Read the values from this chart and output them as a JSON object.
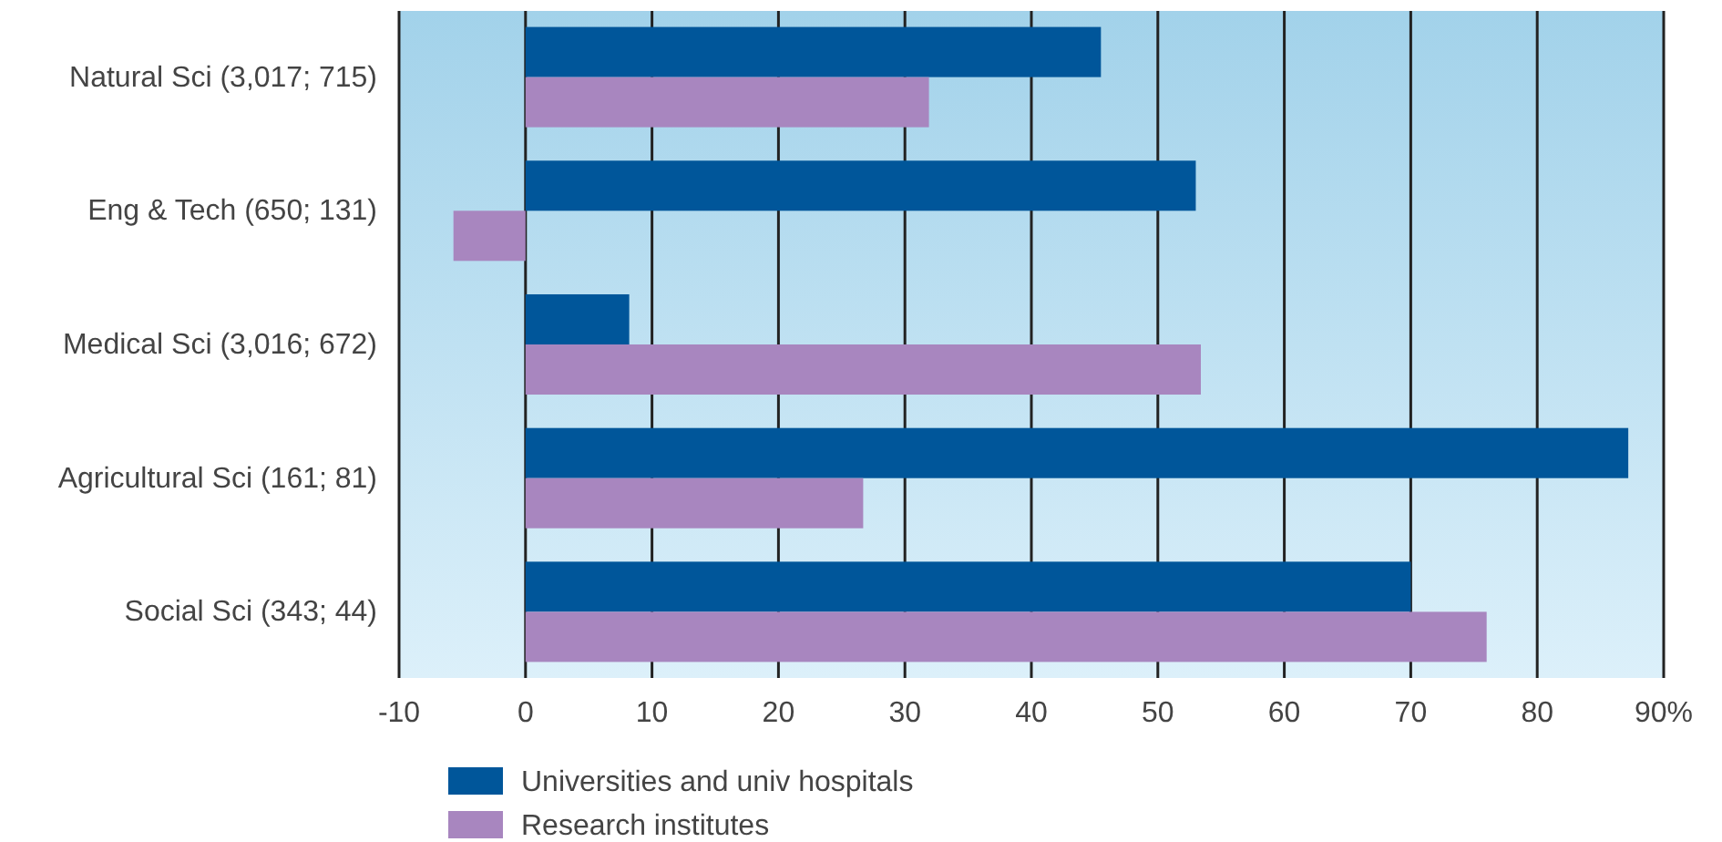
{
  "chart_data": {
    "type": "bar",
    "orientation": "horizontal",
    "categories": [
      "Natural Sci (3,017; 715)",
      "Eng & Tech (650; 131)",
      "Medical Sci (3,016; 672)",
      "Agricultural Sci (161; 81)",
      "Social Sci (343; 44)"
    ],
    "series": [
      {
        "name": "Universities and univ hospitals",
        "color": "#00569a",
        "values": [
          45.5,
          53,
          8.2,
          87.2,
          70
        ]
      },
      {
        "name": "Research institutes",
        "color": "#a886bf",
        "values": [
          31.9,
          -5.7,
          53.4,
          26.7,
          76
        ]
      }
    ],
    "xlim": [
      -10,
      90
    ],
    "xticks": [
      -10,
      0,
      10,
      20,
      30,
      40,
      50,
      60,
      70,
      80,
      {
        "value": 90,
        "label": "90%"
      }
    ],
    "grid": "x",
    "legend": "bottom left"
  }
}
